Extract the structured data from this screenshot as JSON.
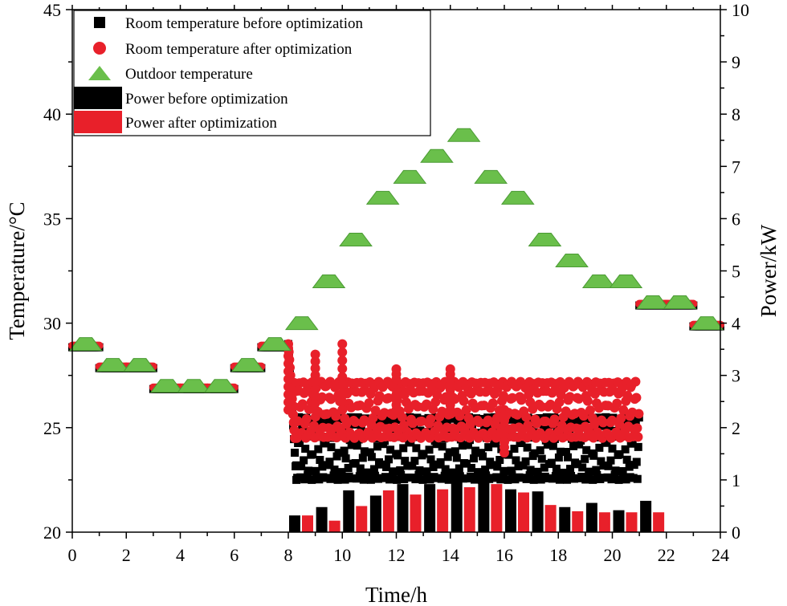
{
  "chart_data": {
    "type": "bar+scatter",
    "xlabel": "Time/h",
    "ylabel_left": "Temperature/°C",
    "ylabel_right": "Power/kW",
    "xlim": [
      0,
      24
    ],
    "ylim_left": [
      20,
      45
    ],
    "ylim_right": [
      0,
      10
    ],
    "xticks": [
      0,
      2,
      4,
      6,
      8,
      10,
      12,
      14,
      16,
      18,
      20,
      22,
      24
    ],
    "xtick_labels": [
      "0",
      "2",
      "4",
      "6",
      "8",
      "10",
      "12",
      "14",
      "16",
      "18",
      "20",
      "22",
      "24"
    ],
    "yticks_left": [
      20,
      25,
      30,
      35,
      40,
      45
    ],
    "ytick_labels_left": [
      "20",
      "25",
      "30",
      "35",
      "40",
      "45"
    ],
    "yticks_right": [
      0,
      1,
      2,
      3,
      4,
      5,
      6,
      7,
      8,
      9,
      10
    ],
    "ytick_labels_right": [
      "0",
      "1",
      "2",
      "3",
      "4",
      "5",
      "6",
      "7",
      "8",
      "9",
      "10"
    ],
    "legend": {
      "position": "top-left",
      "entries": [
        {
          "label": "Room temperature before optimization",
          "marker": "square",
          "color": "#000000"
        },
        {
          "label": "Room temperature after optimization",
          "marker": "circle",
          "color": "#e8202a"
        },
        {
          "label": "Outdoor temperature",
          "marker": "triangle",
          "color": "#6abf4b"
        },
        {
          "label": "Power before optimization",
          "marker": "bar",
          "color": "#000000"
        },
        {
          "label": "Power after optimization",
          "marker": "bar",
          "color": "#e8202a"
        }
      ]
    },
    "outdoor_temperature": {
      "hours": [
        0,
        1,
        2,
        3,
        4,
        5,
        6,
        7,
        8,
        9,
        10,
        11,
        12,
        13,
        14,
        15,
        16,
        17,
        18,
        19,
        20,
        21,
        22,
        23
      ],
      "values": [
        29,
        28,
        28,
        27,
        27,
        27,
        28,
        29,
        30,
        32,
        34,
        36,
        37,
        38,
        39,
        37,
        36,
        34,
        33,
        32,
        32,
        31,
        31,
        30
      ]
    },
    "room_temperature_before": {
      "unoccupied_hours_follow_outdoor": true,
      "cooling_period": [
        8,
        21
      ],
      "band_low": 22.5,
      "band_high": 25.5
    },
    "room_temperature_after": {
      "unoccupied_hours_follow_outdoor": true,
      "cooling_period": [
        8,
        21
      ],
      "band_low": 24.5,
      "band_high": 27.2,
      "spikes": [
        {
          "t": 8.0,
          "v": 28.8
        },
        {
          "t": 9.0,
          "v": 28.5
        },
        {
          "t": 10.0,
          "v": 29.0
        },
        {
          "t": 12.0,
          "v": 27.8
        },
        {
          "t": 14.0,
          "v": 27.8
        },
        {
          "t": 16.0,
          "v": 23.8
        }
      ]
    },
    "power_before": {
      "hours": [
        8,
        9,
        10,
        11,
        12,
        13,
        14,
        15,
        16,
        17,
        18,
        19,
        20,
        21
      ],
      "values": [
        0.32,
        0.48,
        0.8,
        0.7,
        0.92,
        0.92,
        1.0,
        1.0,
        0.82,
        0.78,
        0.48,
        0.56,
        0.42,
        0.6
      ]
    },
    "power_after": {
      "hours": [
        8,
        9,
        10,
        11,
        12,
        13,
        14,
        15,
        16,
        17,
        18,
        19,
        20,
        21
      ],
      "values": [
        0.32,
        0.22,
        0.5,
        0.8,
        0.72,
        0.82,
        0.86,
        0.92,
        0.76,
        0.52,
        0.4,
        0.38,
        0.38,
        0.38
      ]
    }
  }
}
